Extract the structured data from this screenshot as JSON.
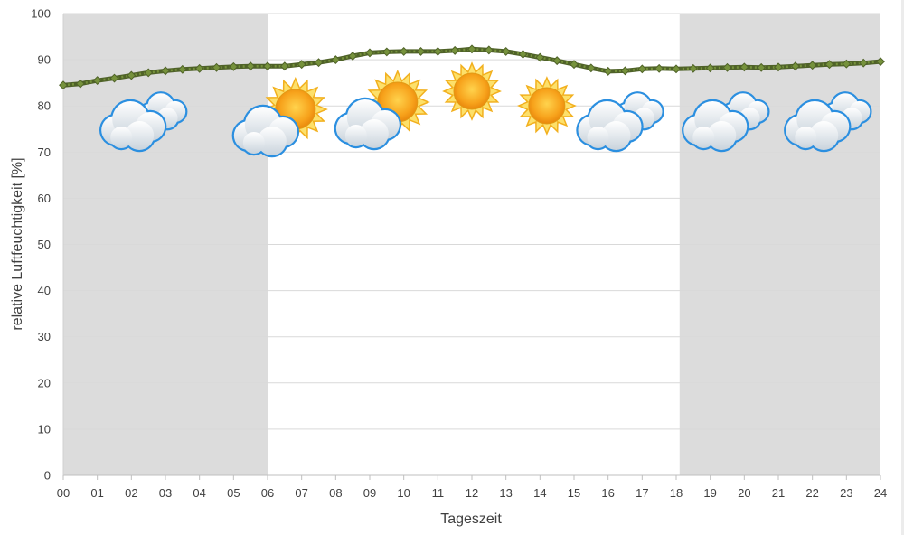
{
  "chart_data": {
    "type": "line",
    "title": "",
    "xlabel": "Tageszeit",
    "ylabel": "relative Luftfeuchtigkeit [%]",
    "xlim": [
      0,
      24
    ],
    "ylim": [
      0,
      100
    ],
    "x_ticks": [
      "00",
      "01",
      "02",
      "03",
      "04",
      "05",
      "06",
      "07",
      "08",
      "09",
      "10",
      "11",
      "12",
      "13",
      "14",
      "15",
      "16",
      "17",
      "18",
      "19",
      "20",
      "21",
      "22",
      "23",
      "24"
    ],
    "y_ticks": [
      0,
      10,
      20,
      30,
      40,
      50,
      60,
      70,
      80,
      90,
      100
    ],
    "grid": true,
    "night_bands": [
      [
        0,
        6
      ],
      [
        18.1,
        24
      ]
    ],
    "series": [
      {
        "color": "#4f6228",
        "marker_color": "#76923c",
        "x": [
          0,
          0.5,
          1,
          1.5,
          2,
          2.5,
          3,
          3.5,
          4,
          4.5,
          5,
          5.5,
          6,
          6.5,
          7,
          7.5,
          8,
          8.5,
          9,
          9.5,
          10,
          10.5,
          11,
          11.5,
          12,
          12.5,
          13,
          13.5,
          14,
          14.5,
          15,
          15.5,
          16,
          16.5,
          17,
          17.5,
          18,
          18.5,
          19,
          19.5,
          20,
          20.5,
          21,
          21.5,
          22,
          22.5,
          23,
          23.5,
          24
        ],
        "values": [
          84.5,
          84.8,
          85.5,
          86.0,
          86.6,
          87.2,
          87.6,
          87.9,
          88.1,
          88.3,
          88.5,
          88.6,
          88.6,
          88.6,
          89.0,
          89.4,
          90.0,
          90.8,
          91.5,
          91.7,
          91.8,
          91.8,
          91.8,
          92.0,
          92.3,
          92.1,
          91.8,
          91.2,
          90.5,
          89.8,
          89.0,
          88.2,
          87.5,
          87.6,
          88.0,
          88.1,
          88.0,
          88.1,
          88.2,
          88.3,
          88.4,
          88.3,
          88.4,
          88.6,
          88.8,
          89.0,
          89.1,
          89.3,
          89.6
        ]
      }
    ],
    "weather_icons": [
      {
        "hour": 2.5,
        "icon": "cloud"
      },
      {
        "hour": 6.5,
        "icon": "sun-cloud"
      },
      {
        "hour": 9.5,
        "icon": "sun-cloud"
      },
      {
        "hour": 12.0,
        "icon": "sun"
      },
      {
        "hour": 14.2,
        "icon": "sun"
      },
      {
        "hour": 16.5,
        "icon": "cloud"
      },
      {
        "hour": 19.6,
        "icon": "cloud"
      },
      {
        "hour": 22.6,
        "icon": "cloud"
      }
    ]
  }
}
